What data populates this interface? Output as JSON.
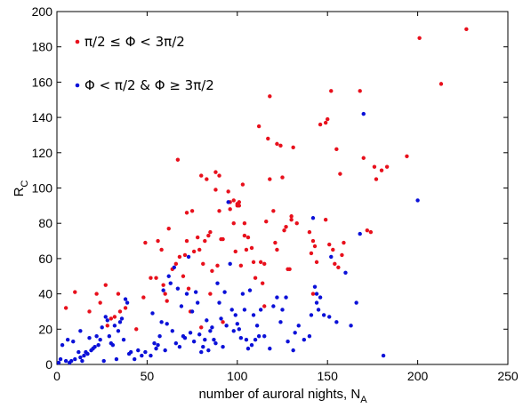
{
  "chart_data": {
    "type": "scatter",
    "xlabel": "number of auroral nights, N",
    "xlabel_sub": "A",
    "ylabel": "R",
    "ylabel_sub": "C",
    "xlim": [
      0,
      250
    ],
    "ylim": [
      0,
      200
    ],
    "xticks": [
      "0",
      "50",
      "100",
      "150",
      "200",
      "250"
    ],
    "yticks": [
      "0",
      "20",
      "40",
      "60",
      "80",
      "100",
      "120",
      "140",
      "160",
      "180",
      "200"
    ],
    "grid": false,
    "legend_position": "top-left",
    "series": [
      {
        "name": "π/2 ≤ Φ < 3π/2",
        "color": "#e8101c",
        "points": [
          [
            5,
            32
          ],
          [
            10,
            41
          ],
          [
            18,
            30
          ],
          [
            22,
            40
          ],
          [
            24,
            35
          ],
          [
            27,
            45
          ],
          [
            28,
            22
          ],
          [
            30,
            26
          ],
          [
            32,
            27
          ],
          [
            34,
            40
          ],
          [
            35,
            30
          ],
          [
            38,
            32
          ],
          [
            44,
            20
          ],
          [
            48,
            38
          ],
          [
            49,
            69
          ],
          [
            52,
            49
          ],
          [
            55,
            49
          ],
          [
            56,
            70
          ],
          [
            58,
            65
          ],
          [
            59,
            45
          ],
          [
            60,
            40
          ],
          [
            61,
            36
          ],
          [
            62,
            77
          ],
          [
            64,
            54
          ],
          [
            66,
            57
          ],
          [
            67,
            116
          ],
          [
            68,
            61
          ],
          [
            70,
            50
          ],
          [
            71,
            62
          ],
          [
            72,
            86
          ],
          [
            72,
            70
          ],
          [
            73,
            43
          ],
          [
            74,
            30
          ],
          [
            75,
            87
          ],
          [
            76,
            64
          ],
          [
            78,
            72
          ],
          [
            79,
            65
          ],
          [
            80,
            21
          ],
          [
            80,
            107
          ],
          [
            81,
            57
          ],
          [
            82,
            70
          ],
          [
            83,
            105
          ],
          [
            84,
            73
          ],
          [
            85,
            75
          ],
          [
            85,
            40
          ],
          [
            86,
            53
          ],
          [
            88,
            99
          ],
          [
            88,
            109
          ],
          [
            89,
            56
          ],
          [
            90,
            107
          ],
          [
            90,
            87
          ],
          [
            91,
            71
          ],
          [
            92,
            71
          ],
          [
            92,
            24
          ],
          [
            95,
            98
          ],
          [
            96,
            92
          ],
          [
            96,
            88
          ],
          [
            98,
            93
          ],
          [
            98,
            80
          ],
          [
            99,
            64
          ],
          [
            100,
            90
          ],
          [
            100,
            91
          ],
          [
            101,
            92
          ],
          [
            101,
            90
          ],
          [
            102,
            56
          ],
          [
            103,
            102
          ],
          [
            104,
            80
          ],
          [
            104,
            73
          ],
          [
            105,
            65
          ],
          [
            106,
            72
          ],
          [
            108,
            66
          ],
          [
            109,
            58
          ],
          [
            110,
            49
          ],
          [
            112,
            135
          ],
          [
            113,
            58
          ],
          [
            114,
            46
          ],
          [
            115,
            57
          ],
          [
            115,
            33
          ],
          [
            116,
            81
          ],
          [
            117,
            128
          ],
          [
            118,
            152
          ],
          [
            118,
            105
          ],
          [
            120,
            87
          ],
          [
            121,
            69
          ],
          [
            122,
            65
          ],
          [
            122,
            125
          ],
          [
            124,
            124
          ],
          [
            125,
            106
          ],
          [
            126,
            76
          ],
          [
            127,
            78
          ],
          [
            128,
            54
          ],
          [
            129,
            54
          ],
          [
            130,
            84
          ],
          [
            130,
            82
          ],
          [
            131,
            123
          ],
          [
            133,
            80
          ],
          [
            140,
            75
          ],
          [
            142,
            70
          ],
          [
            143,
            67
          ],
          [
            141,
            63
          ],
          [
            144,
            58
          ],
          [
            142,
            40
          ],
          [
            146,
            136
          ],
          [
            149,
            137
          ],
          [
            149,
            82
          ],
          [
            150,
            139
          ],
          [
            151,
            68
          ],
          [
            152,
            155
          ],
          [
            153,
            65
          ],
          [
            154,
            57
          ],
          [
            155,
            122
          ],
          [
            156,
            55
          ],
          [
            157,
            108
          ],
          [
            158,
            62
          ],
          [
            159,
            69
          ],
          [
            168,
            155
          ],
          [
            170,
            117
          ],
          [
            172,
            76
          ],
          [
            174,
            75
          ],
          [
            176,
            112
          ],
          [
            177,
            105
          ],
          [
            180,
            110
          ],
          [
            183,
            112
          ],
          [
            194,
            118
          ],
          [
            201,
            185
          ],
          [
            213,
            159
          ],
          [
            227,
            190
          ]
        ]
      },
      {
        "name": "Φ < π/2 & Φ ≥ 3π/2",
        "color": "#0a10d8",
        "points": [
          [
            1,
            1
          ],
          [
            2,
            3
          ],
          [
            3,
            11
          ],
          [
            5,
            2
          ],
          [
            6,
            14
          ],
          [
            7,
            1
          ],
          [
            8,
            2
          ],
          [
            9,
            13
          ],
          [
            10,
            3
          ],
          [
            12,
            7
          ],
          [
            13,
            4
          ],
          [
            13,
            19
          ],
          [
            14,
            2
          ],
          [
            15,
            5
          ],
          [
            16,
            7
          ],
          [
            17,
            6
          ],
          [
            18,
            15
          ],
          [
            19,
            8
          ],
          [
            20,
            9
          ],
          [
            21,
            10
          ],
          [
            22,
            16
          ],
          [
            23,
            11
          ],
          [
            24,
            14
          ],
          [
            25,
            21
          ],
          [
            26,
            2
          ],
          [
            27,
            27
          ],
          [
            28,
            25
          ],
          [
            29,
            16
          ],
          [
            30,
            12
          ],
          [
            31,
            11
          ],
          [
            32,
            22
          ],
          [
            33,
            3
          ],
          [
            34,
            19
          ],
          [
            35,
            24
          ],
          [
            36,
            26
          ],
          [
            37,
            14
          ],
          [
            38,
            37
          ],
          [
            39,
            35
          ],
          [
            40,
            6
          ],
          [
            41,
            7
          ],
          [
            43,
            3
          ],
          [
            45,
            8
          ],
          [
            47,
            5
          ],
          [
            49,
            7
          ],
          [
            52,
            5
          ],
          [
            53,
            29
          ],
          [
            54,
            12
          ],
          [
            55,
            9
          ],
          [
            56,
            11
          ],
          [
            57,
            16
          ],
          [
            58,
            24
          ],
          [
            59,
            42
          ],
          [
            60,
            8
          ],
          [
            61,
            23
          ],
          [
            62,
            50
          ],
          [
            63,
            46
          ],
          [
            64,
            19
          ],
          [
            65,
            55
          ],
          [
            66,
            12
          ],
          [
            67,
            43
          ],
          [
            68,
            10
          ],
          [
            69,
            33
          ],
          [
            70,
            16
          ],
          [
            71,
            15
          ],
          [
            72,
            40
          ],
          [
            73,
            61
          ],
          [
            74,
            18
          ],
          [
            75,
            30
          ],
          [
            76,
            13
          ],
          [
            77,
            41
          ],
          [
            78,
            35
          ],
          [
            79,
            17
          ],
          [
            80,
            7
          ],
          [
            81,
            10
          ],
          [
            82,
            14
          ],
          [
            83,
            25
          ],
          [
            84,
            8
          ],
          [
            85,
            19
          ],
          [
            86,
            21
          ],
          [
            87,
            14
          ],
          [
            88,
            12
          ],
          [
            89,
            46
          ],
          [
            90,
            35
          ],
          [
            91,
            26
          ],
          [
            92,
            10
          ],
          [
            93,
            41
          ],
          [
            94,
            22
          ],
          [
            95,
            92
          ],
          [
            96,
            57
          ],
          [
            97,
            31
          ],
          [
            98,
            19
          ],
          [
            99,
            28
          ],
          [
            100,
            23
          ],
          [
            101,
            20
          ],
          [
            102,
            15
          ],
          [
            103,
            40
          ],
          [
            104,
            31
          ],
          [
            105,
            14
          ],
          [
            106,
            9
          ],
          [
            107,
            42
          ],
          [
            108,
            11
          ],
          [
            109,
            28
          ],
          [
            110,
            14
          ],
          [
            111,
            22
          ],
          [
            112,
            16
          ],
          [
            113,
            31
          ],
          [
            115,
            16
          ],
          [
            118,
            9
          ],
          [
            120,
            33
          ],
          [
            122,
            38
          ],
          [
            124,
            24
          ],
          [
            125,
            31
          ],
          [
            127,
            38
          ],
          [
            128,
            13
          ],
          [
            131,
            8
          ],
          [
            132,
            18
          ],
          [
            134,
            22
          ],
          [
            137,
            14
          ],
          [
            140,
            16
          ],
          [
            141,
            28
          ],
          [
            142,
            83
          ],
          [
            143,
            44
          ],
          [
            144,
            40
          ],
          [
            144,
            35
          ],
          [
            145,
            31
          ],
          [
            146,
            38
          ],
          [
            148,
            28
          ],
          [
            151,
            27
          ],
          [
            152,
            61
          ],
          [
            155,
            24
          ],
          [
            160,
            52
          ],
          [
            163,
            22
          ],
          [
            166,
            35
          ],
          [
            168,
            74
          ],
          [
            170,
            142
          ],
          [
            181,
            5
          ],
          [
            200,
            93
          ]
        ]
      }
    ]
  }
}
